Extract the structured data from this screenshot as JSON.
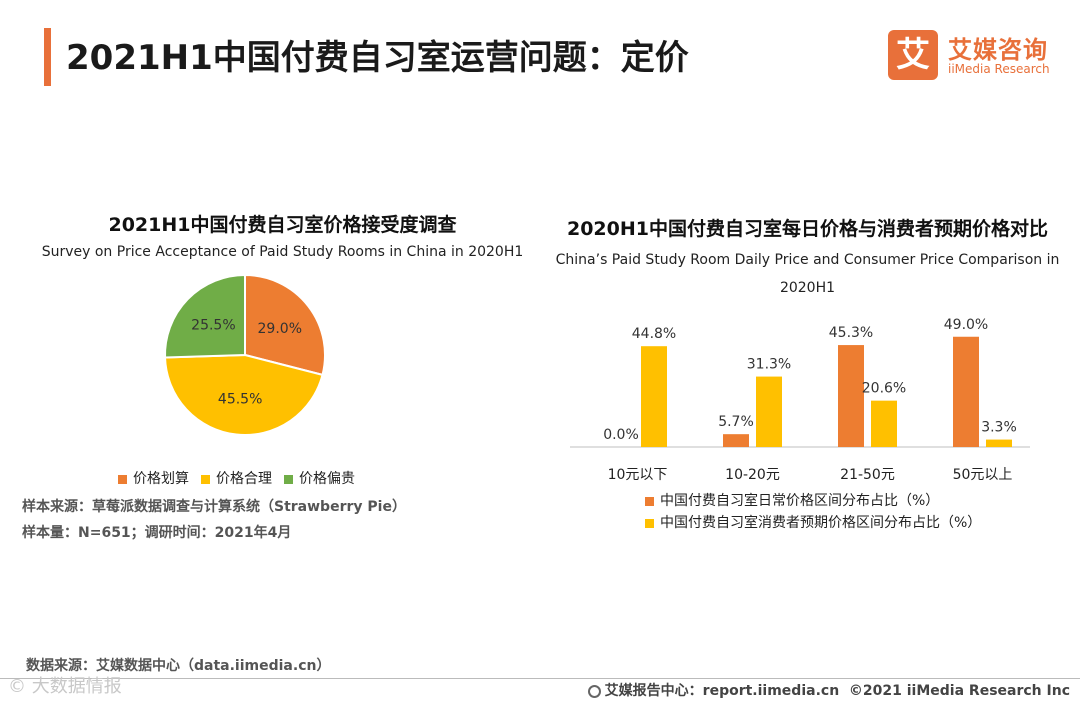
{
  "page": {
    "title": "2021H1中国付费自习室运营问题：定价"
  },
  "logo": {
    "mark": "艾",
    "cn": "艾媒咨询",
    "en": "iiMedia Research"
  },
  "pie_chart": {
    "title_cn": "2021H1中国付费自习室价格接受度调查",
    "title_en": "Survey on Price Acceptance of Paid Study Rooms in China in 2020H1",
    "sample_source": "样本来源：草莓派数据调查与计算系统（Strawberry Pie）",
    "sample_size": "样本量：N=651；调研时间：2021年4月"
  },
  "bar_chart": {
    "title_cn": "2020H1中国付费自习室每日价格与消费者预期价格对比",
    "title_en": "China’s Paid Study Room Daily Price and Consumer Price Comparison in 2020H1"
  },
  "colors": {
    "orange": "#ED7D31",
    "yellow": "#FFC000",
    "green": "#70AD47",
    "accent": "#e8703a"
  },
  "chart_data": [
    {
      "type": "pie",
      "title": "2021H1中国付费自习室价格接受度调查",
      "subtitle": "Survey on Price Acceptance of Paid Study Rooms in China in 2020H1",
      "slices": [
        {
          "name": "价格划算",
          "value": 29.0,
          "label": "29.0%",
          "color": "#ED7D31"
        },
        {
          "name": "价格合理",
          "value": 45.5,
          "label": "45.5%",
          "color": "#FFC000"
        },
        {
          "name": "价格偏贵",
          "value": 25.5,
          "label": "25.5%",
          "color": "#70AD47"
        }
      ],
      "legend_position": "bottom"
    },
    {
      "type": "bar",
      "title": "2020H1中国付费自习室每日价格与消费者预期价格对比",
      "categories": [
        "10元以下",
        "10-20元",
        "21-50元",
        "50元以上"
      ],
      "series": [
        {
          "name": "中国付费自习室日常价格区间分布占比（%）",
          "values": [
            0.0,
            5.7,
            45.3,
            49.0
          ],
          "labels": [
            "0.0%",
            "5.7%",
            "45.3%",
            "49.0%"
          ],
          "color": "#ED7D31"
        },
        {
          "name": "中国付费自习室消费者预期价格区间分布占比（%）",
          "values": [
            44.8,
            31.3,
            20.6,
            3.3
          ],
          "labels": [
            "44.8%",
            "31.3%",
            "20.6%",
            "3.3%"
          ],
          "color": "#FFC000"
        }
      ],
      "ylim": [
        0,
        60
      ],
      "grid": false,
      "legend_position": "bottom"
    }
  ],
  "footer": {
    "source": "数据来源：艾媒数据中心（data.iimedia.cn）",
    "watermark": "© 大数据情报",
    "report": "艾媒报告中心：report.iimedia.cn",
    "copyright": "©2021  iiMedia Research  Inc"
  }
}
